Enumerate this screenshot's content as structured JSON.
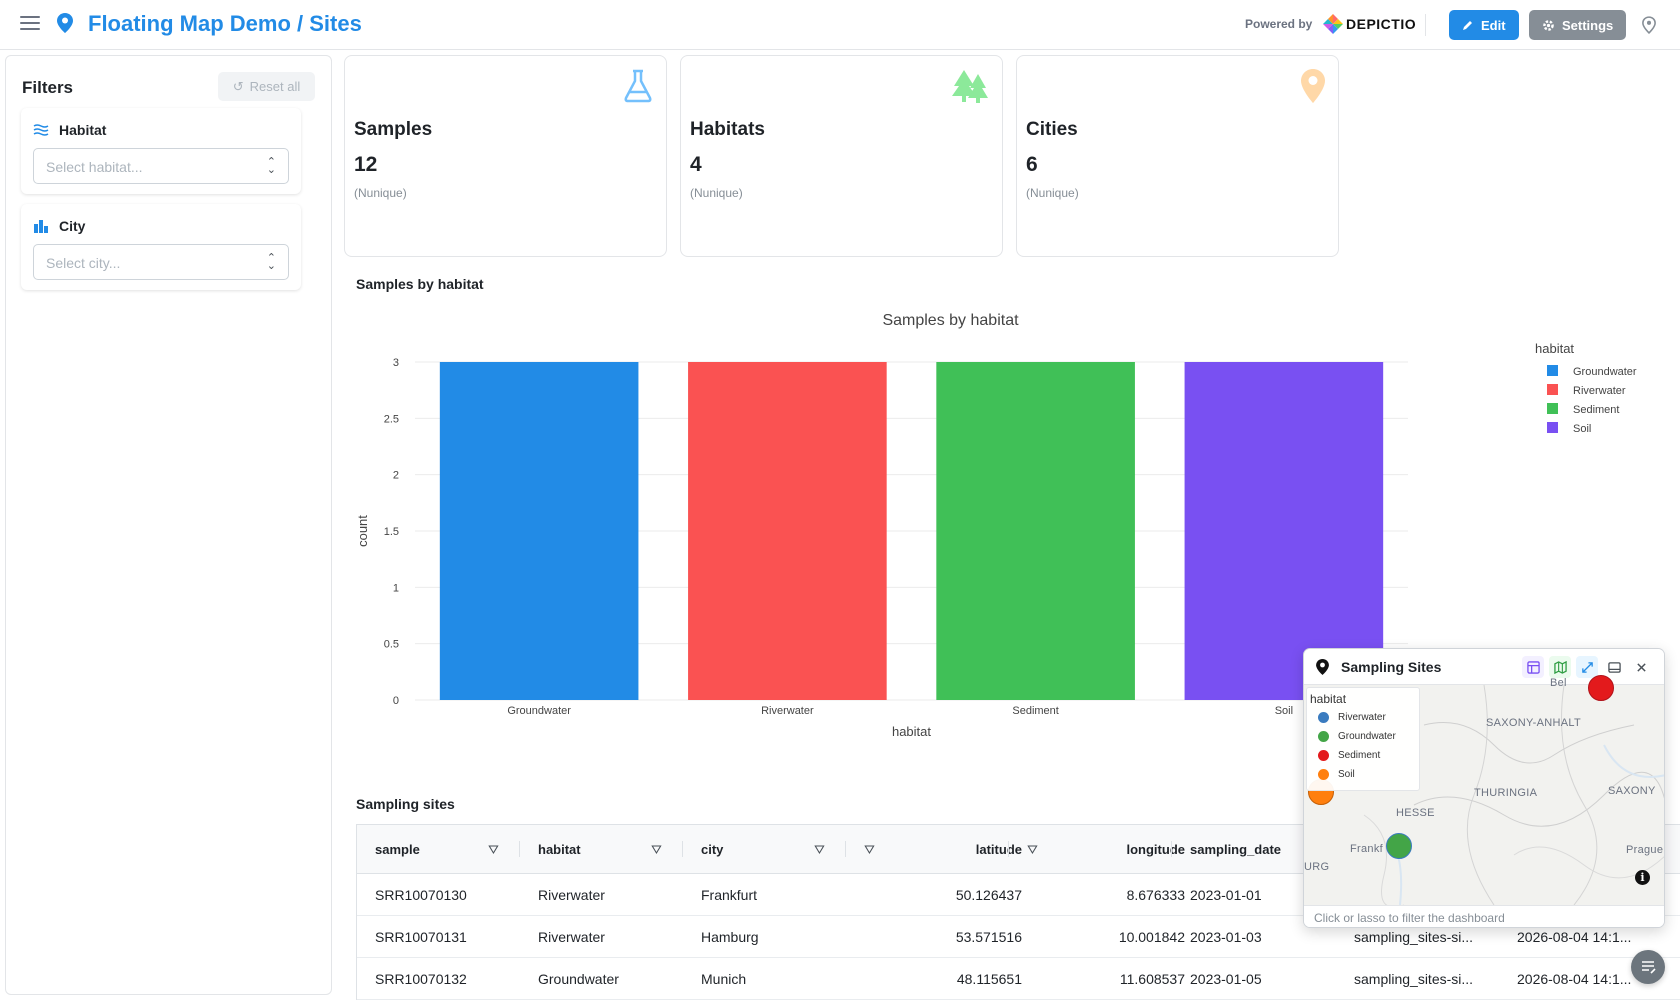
{
  "header": {
    "title": "Floating Map Demo / Sites",
    "powered_by": "Powered by",
    "brand": "DEPICTIO",
    "edit_label": "Edit",
    "settings_label": "Settings",
    "accent": "#228be6"
  },
  "sidebar": {
    "title": "Filters",
    "reset_label": "Reset all",
    "filters": [
      {
        "label": "Habitat",
        "placeholder": "Select habitat...",
        "icon": "waves-icon"
      },
      {
        "label": "City",
        "placeholder": "Select city...",
        "icon": "buildings-icon"
      }
    ]
  },
  "kpis": [
    {
      "title": "Samples",
      "value": "12",
      "sub": "(Nunique)",
      "icon": "flask-icon",
      "color": "#74c0fc"
    },
    {
      "title": "Habitats",
      "value": "4",
      "sub": "(Nunique)",
      "icon": "trees-icon",
      "color": "#8ce99a"
    },
    {
      "title": "Cities",
      "value": "6",
      "sub": "(Nunique)",
      "icon": "map-pin-icon",
      "color": "#ffd8a8"
    }
  ],
  "chart_section_title": "Samples by habitat",
  "chart_data": {
    "type": "bar",
    "title": "Samples by habitat",
    "xlabel": "habitat",
    "ylabel": "count",
    "categories": [
      "Groundwater",
      "Riverwater",
      "Sediment",
      "Soil"
    ],
    "values": [
      3,
      3,
      3,
      3
    ],
    "colors": [
      "#228be6",
      "#fa5252",
      "#40c057",
      "#7950f2"
    ],
    "ylim": [
      0,
      3
    ],
    "yticks": [
      "0",
      "0.5",
      "1",
      "1.5",
      "2",
      "2.5",
      "3"
    ],
    "legend_title": "habitat",
    "legend_position": "top-right",
    "grid": true
  },
  "table_section_title": "Sampling sites",
  "table": {
    "columns": [
      "sample",
      "habitat",
      "city",
      "",
      "latitude",
      "",
      "longitude",
      "sampling_date"
    ],
    "rows": [
      [
        "SRR10070130",
        "Riverwater",
        "Frankfurt",
        "50.126437",
        "8.676333",
        "2023-01-01",
        "",
        ""
      ],
      [
        "SRR10070131",
        "Riverwater",
        "Hamburg",
        "53.571516",
        "10.001842",
        "2023-01-03",
        "sampling_sites-si...",
        "2026-08-04 14:1..."
      ],
      [
        "SRR10070132",
        "Groundwater",
        "Munich",
        "48.115651",
        "11.608537",
        "2023-01-05",
        "sampling_sites-si...",
        "2026-08-04 14:1..."
      ]
    ]
  },
  "map": {
    "title": "Sampling Sites",
    "legend_title": "habitat",
    "legend": [
      {
        "label": "Riverwater",
        "color": "#3a7bbf"
      },
      {
        "label": "Groundwater",
        "color": "#43a547"
      },
      {
        "label": "Sediment",
        "color": "#e31a1c"
      },
      {
        "label": "Soil",
        "color": "#ff7f0e"
      }
    ],
    "regions": [
      "SAXONY-ANHALT",
      "THURINGIA",
      "SAXONY",
      "HESSE",
      "Frankf",
      "Prague",
      "Bel",
      "URG"
    ],
    "hint": "Click or lasso to filter the dashboard"
  }
}
